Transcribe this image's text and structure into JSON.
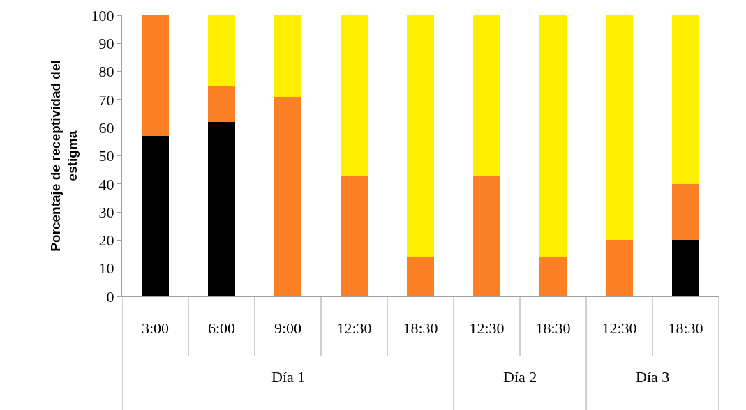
{
  "chart_data": {
    "type": "bar",
    "stacked": true,
    "ylabel": "Porcentaje de receptividad del estigma",
    "categories": [
      "3:00",
      "6:00",
      "9:00",
      "12:30",
      "18:30",
      "12:30",
      "18:30",
      "12:30",
      "18:30"
    ],
    "series": [
      {
        "color": "#000000",
        "values": [
          57,
          62,
          0,
          0,
          0,
          0,
          0,
          0,
          20
        ]
      },
      {
        "color": "#fd7f26",
        "values": [
          43,
          13,
          71,
          43,
          14,
          43,
          14,
          20,
          20
        ]
      },
      {
        "color": "#ffee00",
        "values": [
          0,
          25,
          29,
          57,
          86,
          57,
          86,
          80,
          60
        ]
      }
    ],
    "ylim": [
      0,
      100
    ],
    "yticks": [
      0,
      10,
      20,
      30,
      40,
      50,
      60,
      70,
      80,
      90,
      100
    ],
    "annotations": [
      "Día 1",
      "Día 2",
      "Día 3"
    ]
  }
}
